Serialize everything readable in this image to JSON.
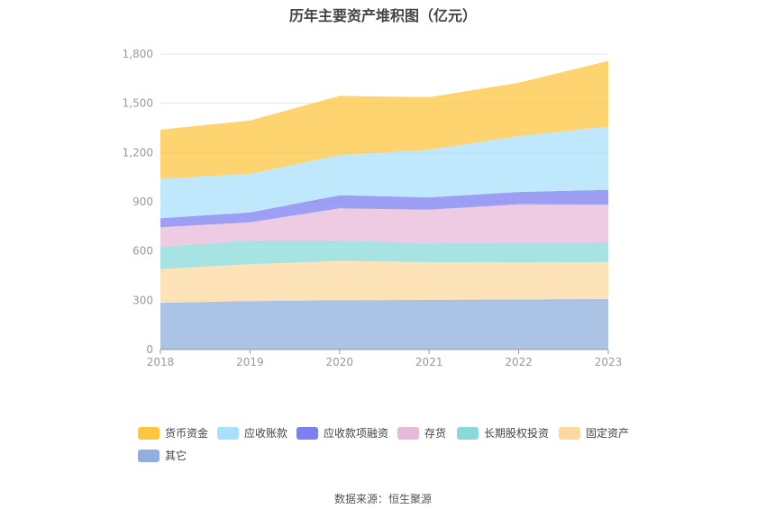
{
  "chart_data": {
    "type": "area",
    "stacked": true,
    "title": "历年主要资产堆积图（亿元）",
    "categories": [
      "2018",
      "2019",
      "2020",
      "2021",
      "2022",
      "2023"
    ],
    "ylim": [
      0,
      1800
    ],
    "yticks": [
      "0",
      "300",
      "600",
      "900",
      "1,200",
      "1,500",
      "1,800"
    ],
    "grid": true,
    "legend_position": "bottom",
    "series": [
      {
        "name": "其它",
        "color": "#8fb0de",
        "values": [
          285,
          295,
          300,
          302,
          305,
          308
        ]
      },
      {
        "name": "固定资产",
        "color": "#fdd9a0",
        "values": [
          205,
          225,
          240,
          230,
          225,
          225
        ]
      },
      {
        "name": "长期股权投资",
        "color": "#8ad9d9",
        "values": [
          135,
          145,
          125,
          115,
          120,
          120
        ]
      },
      {
        "name": "存货",
        "color": "#e8b9d8",
        "values": [
          120,
          110,
          195,
          205,
          235,
          230
        ]
      },
      {
        "name": "应收款项融资",
        "color": "#7b7ff0",
        "values": [
          55,
          60,
          80,
          75,
          75,
          90
        ]
      },
      {
        "name": "应收账款",
        "color": "#a9e0fb",
        "values": [
          240,
          235,
          245,
          290,
          340,
          385
        ]
      },
      {
        "name": "货币资金",
        "color": "#fdc640",
        "values": [
          300,
          325,
          360,
          320,
          325,
          400
        ]
      }
    ],
    "legend_order": [
      "货币资金",
      "应收账款",
      "应收款项融资",
      "存货",
      "长期股权投资",
      "固定资产",
      "其它"
    ]
  },
  "source_text": "数据来源：恒生聚源"
}
